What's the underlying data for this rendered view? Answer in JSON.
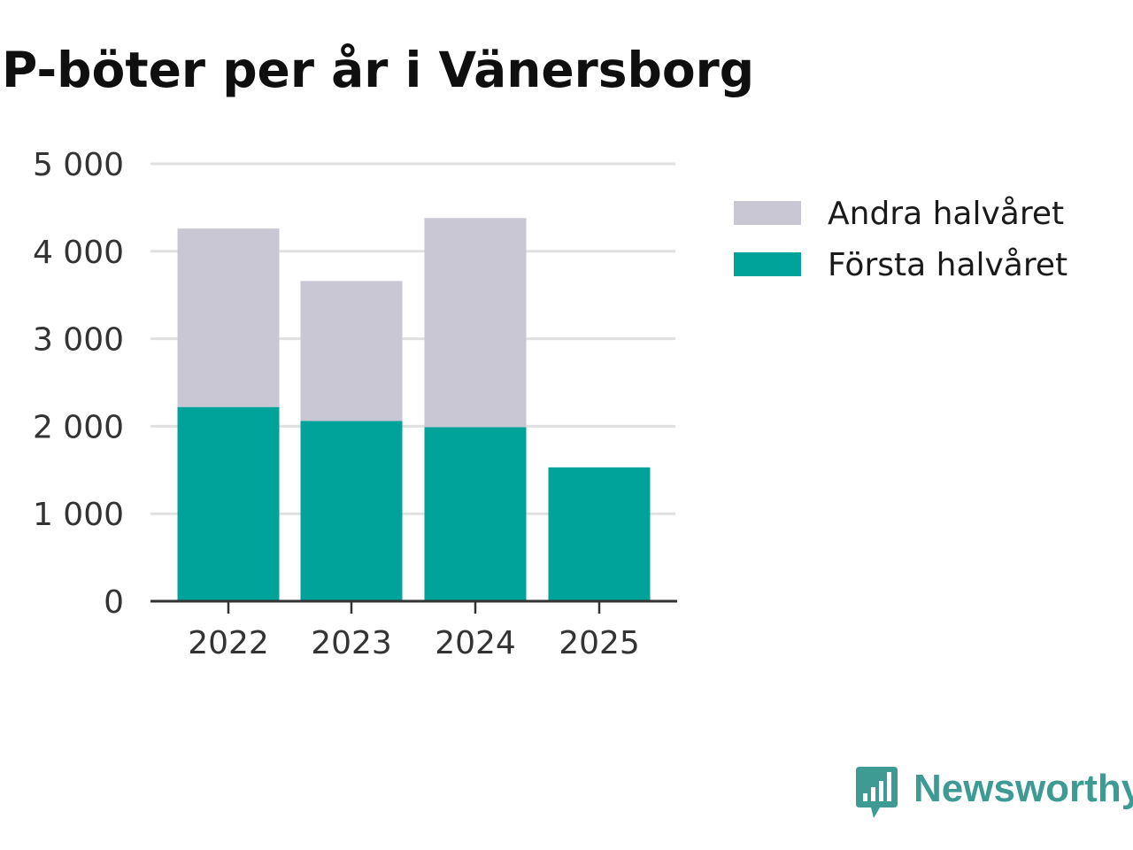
{
  "chart_data": {
    "type": "bar",
    "stacked": true,
    "title": "P-böter per år i Vänersborg",
    "categories": [
      "2022",
      "2023",
      "2024",
      "2025"
    ],
    "series": [
      {
        "name": "Första halvåret",
        "values": [
          2220,
          2060,
          1990,
          1530
        ],
        "color": "#00a39a"
      },
      {
        "name": "Andra halvåret",
        "values": [
          2040,
          1600,
          2390,
          0
        ],
        "color": "#c9c7d4"
      }
    ],
    "ylim": [
      0,
      5000
    ],
    "yticks": [
      0,
      1000,
      2000,
      3000,
      4000,
      5000
    ],
    "ytick_labels": [
      "0",
      "1 000",
      "2 000",
      "3 000",
      "4 000",
      "5 000"
    ],
    "grid": true,
    "legend_position": "right",
    "legend_order": [
      "Andra halvåret",
      "Första halvåret"
    ]
  },
  "brand": {
    "name": "Newsworthy",
    "color": "#3d9b94",
    "icon": "newsworthy-logo-icon"
  }
}
